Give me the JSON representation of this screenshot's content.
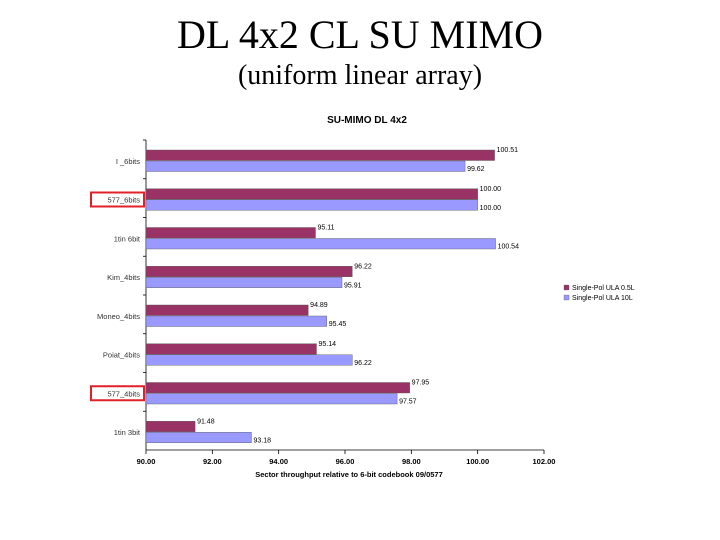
{
  "slide": {
    "title": "DL 4x2 CL SU MIMO",
    "subtitle": "(uniform linear array)"
  },
  "chart_data": {
    "type": "bar",
    "orientation": "horizontal",
    "title": "SU-MIMO DL 4x2",
    "xlabel": "Sector throughput relative to 6-bit codebook 09/0577",
    "ylabel": "",
    "xlim": [
      90,
      102
    ],
    "xticks": [
      "90.00",
      "92.00",
      "94.00",
      "96.00",
      "98.00",
      "100.00",
      "102.00"
    ],
    "categories": [
      "I _6bits",
      "577_6bits",
      "1tin 6bit",
      "Kim_4bits",
      "Moneo_4bits",
      "Poiat_4bits",
      "577_4bits",
      "1tin 3bit"
    ],
    "highlighted_categories": [
      "577_6bits",
      "577_4bits"
    ],
    "highlight_color": "#e0202a",
    "grid": false,
    "legend_position": "right",
    "series": [
      {
        "name": "Single-Pol ULA 0.5L",
        "color": "#993366",
        "values": [
          100.51,
          100.0,
          95.11,
          96.22,
          94.89,
          95.14,
          97.95,
          91.48
        ],
        "labels": [
          "100.51",
          "100.00",
          "95.11",
          "96.22",
          "94.89",
          "95.14",
          "97.95",
          "91.48"
        ]
      },
      {
        "name": "Single-Pol ULA 10L",
        "color": "#9999ff",
        "values": [
          99.62,
          100.0,
          100.54,
          95.91,
          95.45,
          96.22,
          97.57,
          93.18
        ],
        "labels": [
          "99.62",
          "100.00",
          "100.54",
          "95.91",
          "95.45",
          "96.22",
          "97.57",
          "93.18"
        ]
      }
    ]
  }
}
